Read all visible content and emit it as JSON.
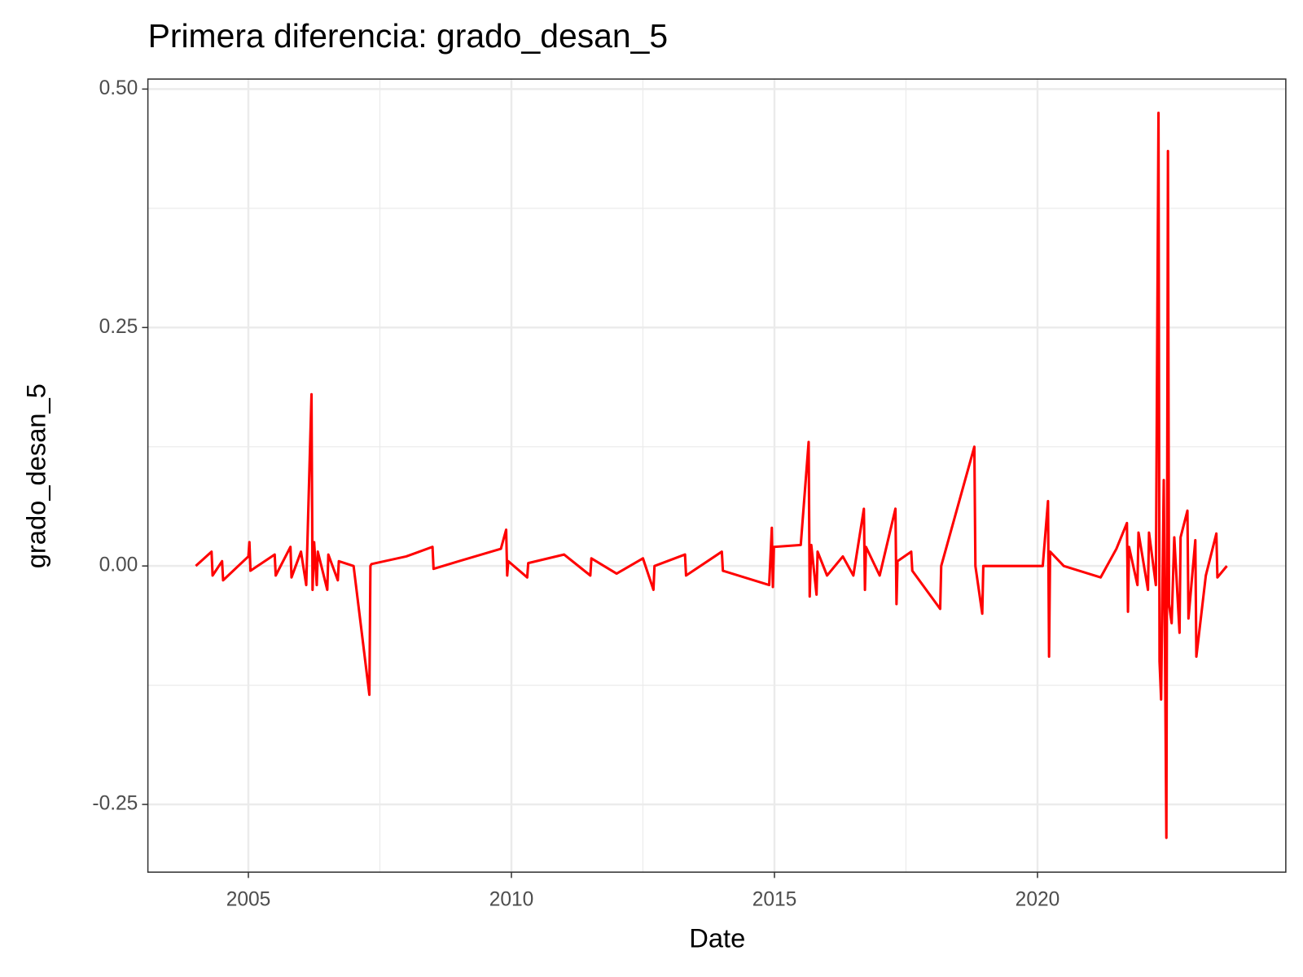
{
  "chart_data": {
    "type": "line",
    "title": "Primera diferencia: grado_desan_5",
    "x_label": "Date",
    "y_label": "grado_desan_5",
    "x": [
      2004.0,
      2004.3,
      2004.32,
      2004.5,
      2004.52,
      2005.0,
      2005.02,
      2005.04,
      2005.5,
      2005.52,
      2005.8,
      2005.82,
      2006.0,
      2006.1,
      2006.2,
      2006.22,
      2006.25,
      2006.3,
      2006.32,
      2006.5,
      2006.52,
      2006.7,
      2006.72,
      2007.0,
      2007.3,
      2007.32,
      2007.34,
      2008.0,
      2008.5,
      2008.52,
      2009.0,
      2009.8,
      2009.9,
      2009.92,
      2009.94,
      2010.3,
      2010.32,
      2011.0,
      2011.5,
      2011.52,
      2012.0,
      2012.5,
      2012.7,
      2012.72,
      2013.3,
      2013.32,
      2014.0,
      2014.02,
      2014.9,
      2014.95,
      2014.97,
      2014.99,
      2015.5,
      2015.65,
      2015.67,
      2015.7,
      2015.8,
      2015.82,
      2016.0,
      2016.3,
      2016.5,
      2016.7,
      2016.72,
      2016.74,
      2017.0,
      2017.3,
      2017.32,
      2017.34,
      2017.6,
      2017.62,
      2018.15,
      2018.17,
      2018.8,
      2018.82,
      2018.95,
      2018.97,
      2020.1,
      2020.2,
      2020.22,
      2020.24,
      2020.5,
      2021.2,
      2021.5,
      2021.7,
      2021.72,
      2021.74,
      2021.9,
      2021.92,
      2022.1,
      2022.12,
      2022.25,
      2022.3,
      2022.32,
      2022.35,
      2022.4,
      2022.45,
      2022.48,
      2022.5,
      2022.55,
      2022.6,
      2022.7,
      2022.72,
      2022.85,
      2022.87,
      2023.0,
      2023.02,
      2023.2,
      2023.4,
      2023.42,
      2023.6
    ],
    "series": [
      {
        "color": "#ff0000",
        "values": [
          0,
          0.015,
          -0.01,
          0.005,
          -0.015,
          0.01,
          0.025,
          -0.005,
          0.012,
          -0.01,
          0.02,
          -0.012,
          0.015,
          -0.02,
          0.18,
          -0.025,
          0.025,
          -0.02,
          0.015,
          -0.025,
          0.012,
          -0.015,
          0.005,
          0,
          -0.135,
          0,
          0.002,
          0.01,
          0.02,
          -0.003,
          0.005,
          0.018,
          0.038,
          -0.01,
          0.005,
          -0.012,
          0.003,
          0.012,
          -0.01,
          0.008,
          -0.008,
          0.008,
          -0.025,
          0,
          0.012,
          -0.01,
          0.015,
          -0.005,
          -0.02,
          0.04,
          -0.022,
          0.02,
          0.022,
          0.13,
          -0.032,
          0.022,
          -0.03,
          0.015,
          -0.01,
          0.01,
          -0.01,
          0.06,
          -0.025,
          0.02,
          -0.01,
          0.06,
          -0.04,
          0.005,
          0.015,
          -0.005,
          -0.045,
          0,
          0.125,
          0,
          -0.05,
          0,
          0,
          0.068,
          -0.095,
          0.015,
          0,
          -0.012,
          0.018,
          0.045,
          -0.048,
          0.02,
          -0.02,
          0.035,
          -0.025,
          0.035,
          -0.02,
          0.475,
          -0.1,
          -0.14,
          0.09,
          -0.285,
          0.435,
          -0.04,
          -0.06,
          0.03,
          -0.07,
          0.03,
          0.058,
          -0.055,
          0.027,
          -0.095,
          -0.01,
          0.034,
          -0.012,
          0
        ]
      }
    ],
    "xlim": [
      2003.09,
      2024.72
    ],
    "xticks": [
      2005,
      2010,
      2015,
      2020
    ],
    "x_minor_ticks": [
      2007.5,
      2012.5,
      2017.5
    ],
    "ylim": [
      -0.321,
      0.5105
    ],
    "yticks": [
      {
        "value": -0.25,
        "label": "-0.25"
      },
      {
        "value": 0,
        "label": "0.00"
      },
      {
        "value": 0.25,
        "label": "0.25"
      },
      {
        "value": 0.5,
        "label": "0.50"
      }
    ],
    "y_minor_ticks": [
      -0.125,
      0.125,
      0.375
    ],
    "grid": true
  }
}
